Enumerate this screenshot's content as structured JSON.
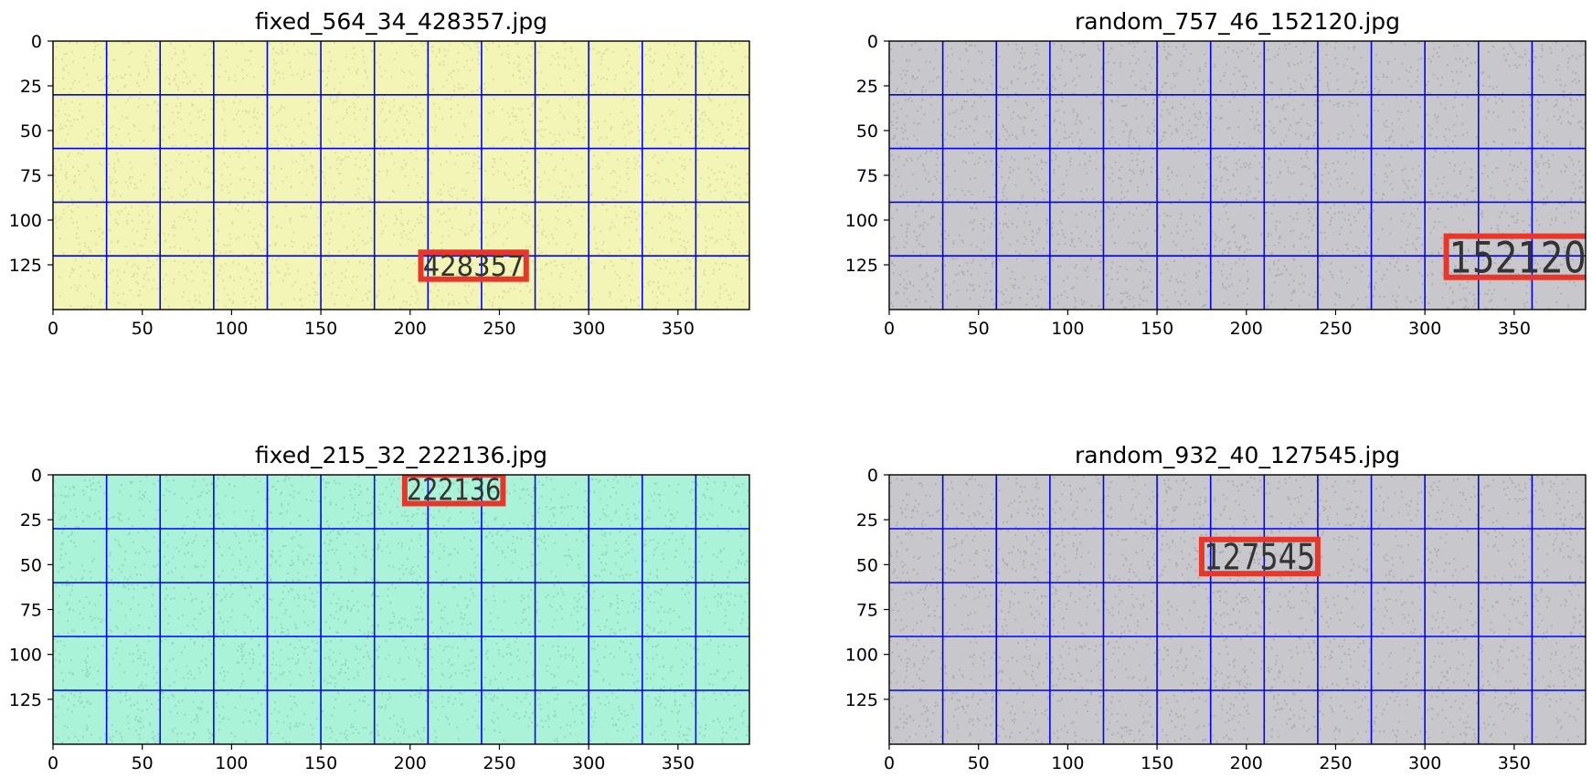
{
  "chart_data": [
    {
      "type": "image",
      "title": "fixed_564_34_428357.jpg",
      "background": "#f2f5b6",
      "noise": "#c9cf90",
      "xlim": [
        0,
        390
      ],
      "ylim": [
        150,
        0
      ],
      "xticks": [
        0,
        50,
        100,
        150,
        200,
        250,
        300,
        350
      ],
      "yticks": [
        0,
        25,
        50,
        75,
        100,
        125
      ],
      "grid_x": [
        30,
        60,
        90,
        120,
        150,
        180,
        210,
        240,
        270,
        300,
        330,
        360
      ],
      "grid_y": [
        30,
        60,
        90,
        120
      ],
      "grid_color": "#0000ff",
      "text": "428357",
      "text_box": {
        "x0": 206,
        "x1": 265,
        "y0": 118,
        "y1": 133
      },
      "box_color": "#e8372a"
    },
    {
      "type": "image",
      "title": "random_757_46_152120.jpg",
      "background": "#c8c8cc",
      "noise": "#9a9aa2",
      "xlim": [
        0,
        390
      ],
      "ylim": [
        150,
        0
      ],
      "xticks": [
        0,
        50,
        100,
        150,
        200,
        250,
        300,
        350
      ],
      "yticks": [
        0,
        25,
        50,
        75,
        100,
        125
      ],
      "grid_x": [
        30,
        60,
        90,
        120,
        150,
        180,
        210,
        240,
        270,
        300,
        330,
        360
      ],
      "grid_y": [
        30,
        60,
        90,
        120
      ],
      "grid_color": "#0000ff",
      "text": "152120",
      "text_box": {
        "x0": 312,
        "x1": 392,
        "y0": 109,
        "y1": 132
      },
      "box_color": "#e8372a"
    },
    {
      "type": "image",
      "title": "fixed_215_32_222136.jpg",
      "background": "#aaf2d8",
      "noise": "#7cc8ae",
      "xlim": [
        0,
        390
      ],
      "ylim": [
        150,
        0
      ],
      "xticks": [
        0,
        50,
        100,
        150,
        200,
        250,
        300,
        350
      ],
      "yticks": [
        0,
        25,
        50,
        75,
        100,
        125
      ],
      "grid_x": [
        30,
        60,
        90,
        120,
        150,
        180,
        210,
        240,
        270,
        300,
        330,
        360
      ],
      "grid_y": [
        30,
        60,
        90,
        120
      ],
      "grid_color": "#0000ff",
      "text": "222136",
      "text_box": {
        "x0": 197,
        "x1": 252,
        "y0": 0,
        "y1": 16
      },
      "box_color": "#e8372a"
    },
    {
      "type": "image",
      "title": "random_932_40_127545.jpg",
      "background": "#c8c8cc",
      "noise": "#9a9aa2",
      "xlim": [
        0,
        390
      ],
      "ylim": [
        150,
        0
      ],
      "xticks": [
        0,
        50,
        100,
        150,
        200,
        250,
        300,
        350
      ],
      "yticks": [
        0,
        25,
        50,
        75,
        100,
        125
      ],
      "grid_x": [
        30,
        60,
        90,
        120,
        150,
        180,
        210,
        240,
        270,
        300,
        330,
        360
      ],
      "grid_y": [
        30,
        60,
        90,
        120
      ],
      "grid_color": "#0000ff",
      "text": "127545",
      "text_box": {
        "x0": 175,
        "x1": 240,
        "y0": 36,
        "y1": 55
      },
      "box_color": "#e8372a"
    }
  ]
}
